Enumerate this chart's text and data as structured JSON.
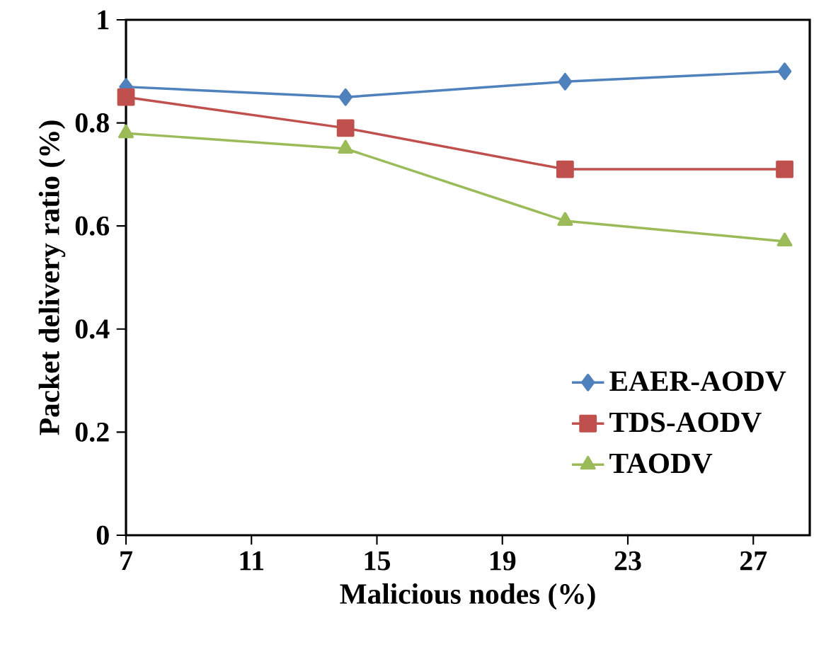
{
  "chart_data": {
    "type": "line",
    "xlabel": "Malicious nodes (%)",
    "ylabel": "Packet delivery ratio (%)",
    "x": [
      7,
      14,
      21,
      28
    ],
    "series": [
      {
        "name": "EAER-AODV",
        "color": "#4f81bd",
        "marker": "diamond",
        "values": [
          0.87,
          0.85,
          0.88,
          0.9
        ]
      },
      {
        "name": "TDS-AODV",
        "color": "#c0504d",
        "marker": "square",
        "values": [
          0.85,
          0.79,
          0.71,
          0.71
        ]
      },
      {
        "name": "TAODV",
        "color": "#9bbb59",
        "marker": "triangle",
        "values": [
          0.78,
          0.75,
          0.61,
          0.57
        ]
      }
    ],
    "xlim": [
      7,
      28.8
    ],
    "xticks": [
      7,
      11,
      15,
      19,
      23,
      27
    ],
    "ylim": [
      0,
      1
    ],
    "yticks": [
      0,
      0.2,
      0.4,
      0.6,
      0.8,
      1
    ],
    "grid": false,
    "legend": "bottom right"
  }
}
